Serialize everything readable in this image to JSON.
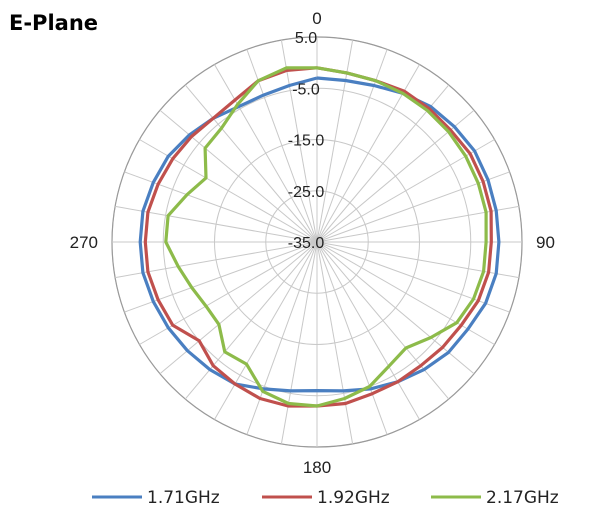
{
  "chart_data": {
    "type": "polar-line",
    "title": "E-Plane",
    "angle_tick_labels": [
      {
        "angle": 0,
        "label": "0"
      },
      {
        "angle": 90,
        "label": "90"
      },
      {
        "angle": 180,
        "label": "180"
      },
      {
        "angle": 270,
        "label": "270"
      }
    ],
    "radial_tick_labels": [
      "5.0",
      "-5.0",
      "-15.0",
      "-25.0",
      "-35.0"
    ],
    "radial_ticks": [
      5,
      -5,
      -15,
      -25,
      -35
    ],
    "rlim": [
      -35,
      5
    ],
    "angular_gridlines_deg": 10,
    "legend_position": "bottom",
    "series": [
      {
        "name": "1.71GHz",
        "color": "#4a7fc1",
        "angle": [
          0,
          10,
          20,
          30,
          40,
          50,
          60,
          70,
          80,
          90,
          100,
          110,
          120,
          130,
          140,
          150,
          160,
          170,
          180,
          190,
          200,
          210,
          220,
          230,
          240,
          250,
          260,
          270,
          280,
          290,
          300,
          310,
          320,
          330,
          340,
          350
        ],
        "value": [
          -3,
          -3,
          -2.5,
          -1.5,
          -0.5,
          0,
          0.5,
          0.5,
          0.5,
          0.5,
          0.5,
          0,
          -1,
          -1.5,
          -2.5,
          -3.5,
          -4.5,
          -5.5,
          -6,
          -5.5,
          -4.5,
          -3,
          -2.5,
          -2,
          -1.5,
          -1,
          -0.5,
          -0.5,
          -0.5,
          -1,
          -1.5,
          -2.5,
          -3.5,
          -4.5,
          -4.5,
          -4
        ]
      },
      {
        "name": "1.92GHz",
        "color": "#c0504d",
        "angle": [
          0,
          10,
          20,
          30,
          40,
          50,
          60,
          70,
          80,
          90,
          100,
          110,
          120,
          130,
          140,
          150,
          160,
          170,
          180,
          190,
          200,
          210,
          220,
          230,
          240,
          250,
          260,
          270,
          280,
          290,
          300,
          310,
          320,
          330,
          340,
          350
        ],
        "value": [
          -1,
          -1.5,
          -1.5,
          -1,
          -1,
          -1,
          -0.5,
          -0.5,
          -0.5,
          -1,
          -1,
          -1.5,
          -2.5,
          -3,
          -3.5,
          -3.5,
          -3.5,
          -3,
          -3,
          -2.5,
          -2.5,
          -3,
          -3.5,
          -5,
          -2.5,
          -2,
          -1.5,
          -1.5,
          -1.5,
          -2,
          -2.5,
          -3,
          -3.5,
          -3,
          -1.5,
          -1
        ]
      },
      {
        "name": "2.17GHz",
        "color": "#8dbb4a",
        "angle": [
          0,
          10,
          20,
          30,
          40,
          50,
          60,
          70,
          80,
          90,
          100,
          110,
          120,
          130,
          140,
          150,
          160,
          170,
          180,
          190,
          200,
          210,
          220,
          230,
          240,
          250,
          260,
          270,
          280,
          290,
          300,
          310,
          320,
          330,
          340,
          350
        ],
        "value": [
          -1,
          -1.5,
          -1.5,
          -1.5,
          -1.5,
          -1.5,
          -1.5,
          -1.5,
          -1.5,
          -2,
          -2,
          -2.5,
          -3.5,
          -6,
          -8,
          -7,
          -5,
          -4,
          -3,
          -3,
          -4,
          -7.5,
          -7,
          -10,
          -10,
          -9,
          -7.5,
          -5.5,
          -5.5,
          -8,
          -10,
          -6.5,
          -6,
          -4,
          -1.5,
          -0.5
        ]
      }
    ]
  }
}
